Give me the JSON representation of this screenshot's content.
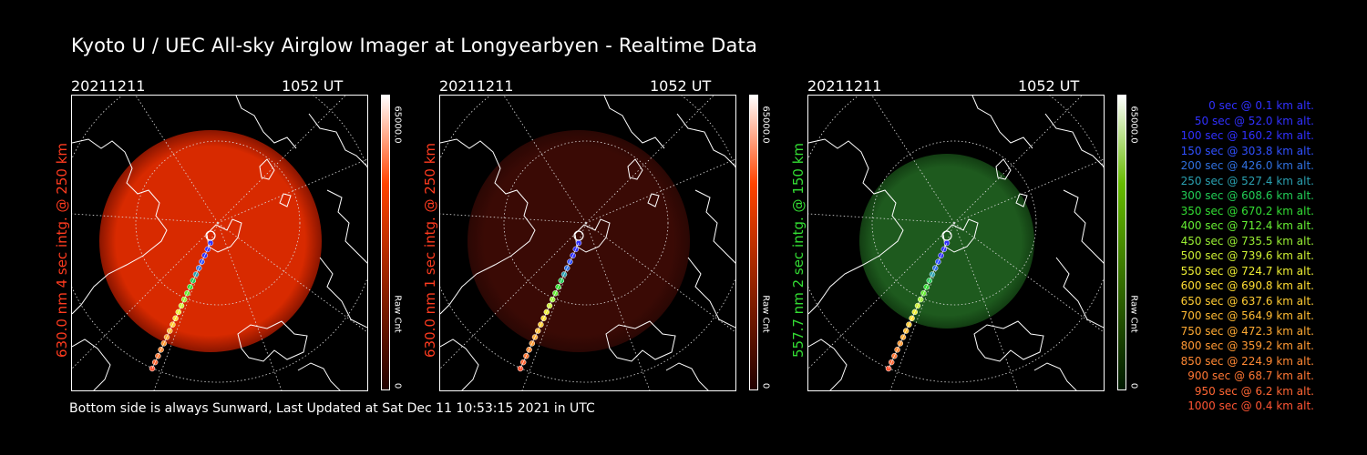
{
  "title": "Kyoto U / UEC All-sky Airglow Imager at Longyearbyen - Realtime Data",
  "footer": "Bottom side is always Sunward, Last Updated at Sat Dec 11 10:53:15 2021 in UTC",
  "panels": [
    {
      "date": "20211211",
      "time": "1052 UT",
      "side_label": "630.0 nm 4 sec intg. @ 250 km",
      "label_color": "#ff3b1f",
      "colorbar_max": "65000.0",
      "colorbar_unit": "Raw Cnt",
      "colorbar_min": "0",
      "colorbar_top": "#ffffff",
      "colorbar_mid": "#ff4400",
      "colorbar_bottom": "#220000",
      "glow_color": "#d82a00",
      "glow_edge": "#8a1500"
    },
    {
      "date": "20211211",
      "time": "1052 UT",
      "side_label": "630.0 nm 1 sec intg. @ 250 km",
      "label_color": "#ff3b1f",
      "colorbar_max": "65000.0",
      "colorbar_unit": "Raw Cnt",
      "colorbar_min": "0",
      "colorbar_top": "#ffffff",
      "colorbar_mid": "#ff4400",
      "colorbar_bottom": "#220000",
      "glow_color": "#3a0a05",
      "glow_edge": "#2a0704"
    },
    {
      "date": "20211211",
      "time": "1052 UT",
      "side_label": "557.7 nm 2 sec intg. @ 150 km",
      "label_color": "#33dd33",
      "colorbar_max": "65000.0",
      "colorbar_unit": "Raw Cnt",
      "colorbar_min": "0",
      "colorbar_top": "#ffffff",
      "colorbar_mid": "#66bb00",
      "colorbar_bottom": "#001a00",
      "glow_color": "#1e5a1e",
      "glow_edge": "#123d12"
    }
  ],
  "trajectory_legend": [
    {
      "text": "0 sec @   0.1 km alt.",
      "color": "#3030ff"
    },
    {
      "text": "50 sec @  52.0 km alt.",
      "color": "#3030ff"
    },
    {
      "text": "100 sec @ 160.2 km alt.",
      "color": "#3030ff"
    },
    {
      "text": "150 sec @ 303.8 km alt.",
      "color": "#3050ff"
    },
    {
      "text": "200 sec @ 426.0 km alt.",
      "color": "#3070e0"
    },
    {
      "text": "250 sec @ 527.4 km alt.",
      "color": "#2aa0b0"
    },
    {
      "text": "300 sec @ 608.6 km alt.",
      "color": "#22cc55"
    },
    {
      "text": "350 sec @ 670.2 km alt.",
      "color": "#33dd33"
    },
    {
      "text": "400 sec @ 712.4 km alt.",
      "color": "#66ee33"
    },
    {
      "text": "450 sec @ 735.5 km alt.",
      "color": "#99ee33"
    },
    {
      "text": "500 sec @ 739.6 km alt.",
      "color": "#ccee33"
    },
    {
      "text": "550 sec @ 724.7 km alt.",
      "color": "#eeee33"
    },
    {
      "text": "600 sec @ 690.8 km alt.",
      "color": "#ffdd33"
    },
    {
      "text": "650 sec @ 637.6 km alt.",
      "color": "#ffcc33"
    },
    {
      "text": "700 sec @ 564.9 km alt.",
      "color": "#ffbb33"
    },
    {
      "text": "750 sec @ 472.3 km alt.",
      "color": "#ffaa33"
    },
    {
      "text": "800 sec @ 359.2 km alt.",
      "color": "#ff9933"
    },
    {
      "text": "850 sec @ 224.9 km alt.",
      "color": "#ff8833"
    },
    {
      "text": "900 sec @  68.7 km alt.",
      "color": "#ff7733"
    },
    {
      "text": "950 sec @   6.2 km alt.",
      "color": "#ff6633"
    },
    {
      "text": "1000 sec @   0.4 km alt.",
      "color": "#ff5533"
    }
  ]
}
